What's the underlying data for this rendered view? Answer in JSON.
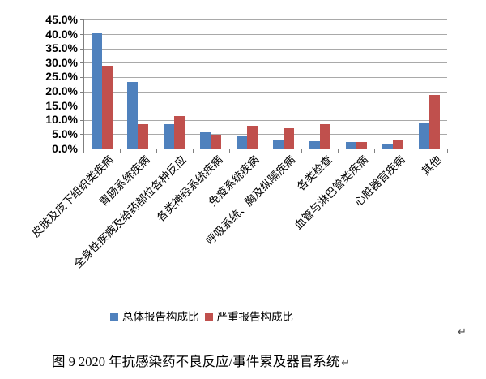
{
  "chart_data": {
    "type": "bar",
    "title": "",
    "categories": [
      "皮肤及皮下组织类疾病",
      "胃肠系统疾病",
      "全身性疾病及给药部位各种反应",
      "各类神经系统疾病",
      "免疫系统疾病",
      "呼吸系统、胸及纵隔疾病",
      "各类检查",
      "血管与淋巴管类疾病",
      "心脏器官疾病",
      "其他"
    ],
    "series": [
      {
        "name": "总体报告构成比",
        "color": "#4f81bd",
        "values": [
          40.3,
          23.2,
          8.5,
          5.7,
          4.5,
          3.0,
          2.7,
          2.2,
          1.8,
          8.9
        ]
      },
      {
        "name": "严重报告构成比",
        "color": "#c0504d",
        "values": [
          28.9,
          8.6,
          11.4,
          4.9,
          8.0,
          7.2,
          8.6,
          2.2,
          3.0,
          18.6
        ]
      }
    ],
    "xlabel": "",
    "ylabel": "",
    "ylim": [
      0,
      45
    ],
    "ytick_step": 5,
    "ytick_labels": [
      "0.0%",
      "5.0%",
      "10.0%",
      "15.0%",
      "20.0%",
      "25.0%",
      "30.0%",
      "35.0%",
      "40.0%",
      "45.0%"
    ],
    "grid": true,
    "legend_position": "bottom",
    "colors": {
      "gridline": "#a9a9a9",
      "axis": "#7f7f7f",
      "text": "#000000"
    }
  },
  "caption": {
    "text": "图 9  2020 年抗感染药不良反应/事件累及器官系统",
    "return_mark": "↵"
  },
  "document": {
    "return_mark": "↵"
  }
}
